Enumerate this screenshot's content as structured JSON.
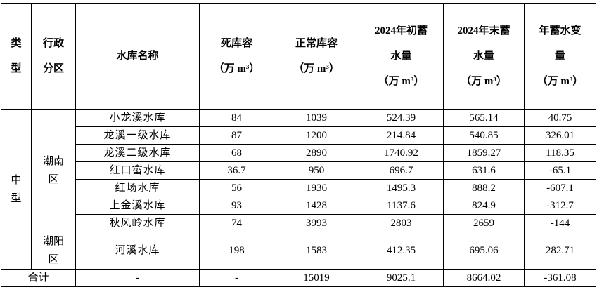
{
  "table": {
    "header": [
      [
        "类",
        "型"
      ],
      [
        "行政",
        "分区"
      ],
      [
        "水库名称"
      ],
      [
        "死库容",
        "（万 m³）"
      ],
      [
        "正常库容",
        "（万 m³）"
      ],
      [
        "2024年初蓄",
        "水量",
        "（万 m³）"
      ],
      [
        "2024年末蓄",
        "水量",
        "（万 m³）"
      ],
      [
        "年蓄水变",
        "量",
        "（万 m³）"
      ]
    ],
    "type": [
      "中",
      "型"
    ],
    "districts": [
      {
        "name": [
          "潮南",
          "区"
        ],
        "rows": 7
      },
      {
        "name": [
          "潮阳",
          "区"
        ],
        "rows": 1
      }
    ],
    "rows": [
      [
        "小龙溪水库",
        84,
        1039,
        524.39,
        565.14,
        40.75
      ],
      [
        "龙溪一级水库",
        87,
        1200,
        214.84,
        540.85,
        326.01
      ],
      [
        "龙溪二级水库",
        68,
        2890,
        1740.92,
        1859.27,
        118.35
      ],
      [
        "红口畲水库",
        36.7,
        950,
        696.7,
        631.6,
        -65.1
      ],
      [
        "红场水库",
        56,
        1936,
        1495.3,
        888.2,
        -607.1
      ],
      [
        "上金溪水库",
        93,
        1428,
        1137.6,
        824.9,
        -312.7
      ],
      [
        "秋风岭水库",
        74,
        3993,
        2803,
        2659,
        -144
      ],
      [
        "河溪水库",
        198,
        1583,
        412.35,
        695.06,
        282.71
      ]
    ],
    "total": [
      "合计",
      "-",
      "-",
      15019,
      9025.1,
      8664.02,
      -361.08
    ]
  }
}
